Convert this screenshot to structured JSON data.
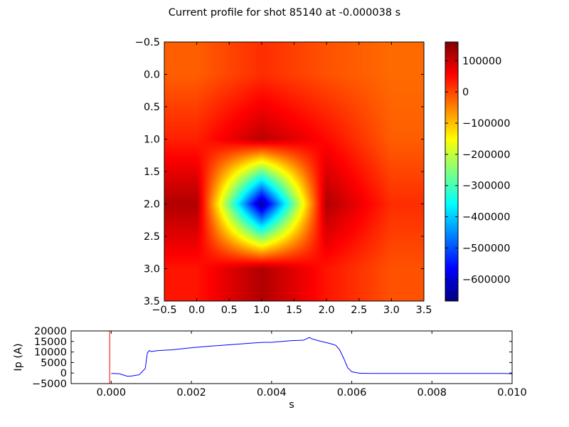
{
  "title": "Current profile for shot 85140 at -0.000038 s",
  "chart_data": [
    {
      "type": "heatmap",
      "colormap": "jet",
      "x_ticks": [
        "−0.5",
        "0.0",
        "0.5",
        "1.0",
        "1.5",
        "2.0",
        "2.5",
        "3.0",
        "3.5"
      ],
      "y_ticks": [
        "−0.5",
        "0.0",
        "0.5",
        "1.0",
        "1.5",
        "2.0",
        "2.5",
        "3.0",
        "3.5"
      ],
      "x_tick_values": [
        -0.5,
        0.0,
        0.5,
        1.0,
        1.5,
        2.0,
        2.5,
        3.0,
        3.5
      ],
      "y_tick_values": [
        -0.5,
        0.0,
        0.5,
        1.0,
        1.5,
        2.0,
        2.5,
        3.0,
        3.5
      ],
      "xlim": [
        -0.5,
        3.5
      ],
      "ylim": [
        3.5,
        -0.5
      ],
      "grid": false,
      "x": [
        0,
        1,
        2,
        3
      ],
      "y": [
        0,
        1,
        2,
        3
      ],
      "values": [
        [
          -20000,
          20000,
          -10000,
          -30000
        ],
        [
          30000,
          110000,
          50000,
          -20000
        ],
        [
          120000,
          -650000,
          120000,
          20000
        ],
        [
          40000,
          120000,
          40000,
          -10000
        ]
      ],
      "colorbar": {
        "vmin": -670000,
        "vmax": 160000,
        "ticks": [
          "100000",
          "0",
          "−100000",
          "−200000",
          "−300000",
          "−400000",
          "−500000",
          "−600000"
        ],
        "tick_values": [
          100000,
          0,
          -100000,
          -200000,
          -300000,
          -400000,
          -500000,
          -600000
        ]
      }
    },
    {
      "type": "line",
      "xlabel": "s",
      "ylabel": "Ip (A)",
      "xlim": [
        -0.001,
        0.01
      ],
      "ylim": [
        -5000,
        20000
      ],
      "grid": false,
      "x_ticks": [
        "0.000",
        "0.002",
        "0.004",
        "0.006",
        "0.008",
        "0.010"
      ],
      "x_tick_values": [
        0.0,
        0.002,
        0.004,
        0.006,
        0.008,
        0.01
      ],
      "y_ticks": [
        "20000",
        "15000",
        "10000",
        "5000",
        "0",
        "−5000"
      ],
      "y_tick_values": [
        20000,
        15000,
        10000,
        5000,
        0,
        -5000
      ],
      "series": [
        {
          "color": "#0000ff",
          "x": [
            0.0,
            0.0002,
            0.0003,
            0.0004,
            0.0005,
            0.0006,
            0.0007,
            0.0008,
            0.00085,
            0.0009,
            0.00095,
            0.001,
            0.0011,
            0.0012,
            0.0015,
            0.002,
            0.0025,
            0.003,
            0.0035,
            0.0038,
            0.004,
            0.0045,
            0.0048,
            0.0049,
            0.00495,
            0.005,
            0.0052,
            0.0054,
            0.0055,
            0.0056,
            0.0057,
            0.0058,
            0.0059,
            0.006,
            0.0062,
            0.0065,
            0.007,
            0.008,
            0.009,
            0.0098,
            0.01
          ],
          "y": [
            -200,
            -300,
            -900,
            -1500,
            -1400,
            -1100,
            -800,
            1200,
            2200,
            9500,
            10700,
            10200,
            10500,
            10700,
            11000,
            12000,
            12800,
            13500,
            14200,
            14600,
            14600,
            15400,
            15600,
            16500,
            16900,
            16300,
            15200,
            14300,
            13800,
            13200,
            11000,
            7000,
            2500,
            600,
            -100,
            -200,
            -200,
            -200,
            -200,
            -200,
            -300
          ]
        }
      ],
      "markers": [
        {
          "color": "#ff0000",
          "x": -3.8e-05
        }
      ]
    }
  ]
}
